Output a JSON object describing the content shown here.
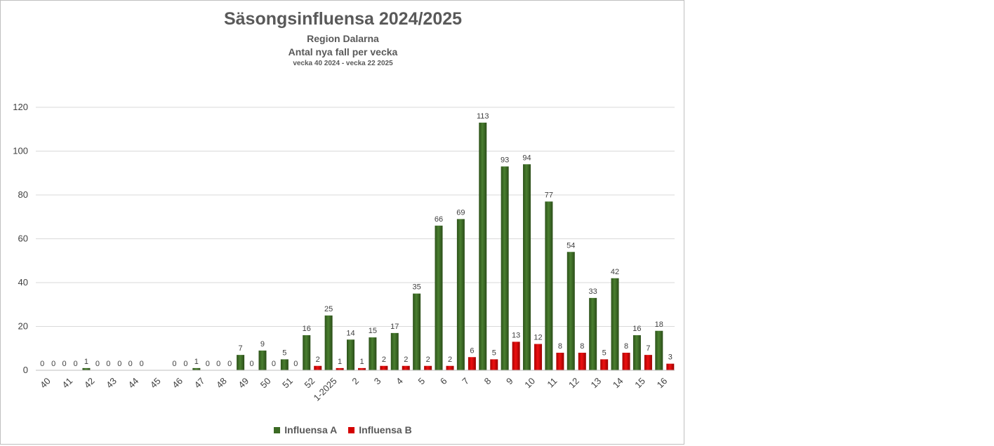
{
  "chart_data": {
    "type": "bar",
    "title": "Säsongsinfluensa 2024/2025",
    "subtitle_lines": [
      "Region Dalarna",
      "Antal nya fall per vecka",
      "vecka 40 2024 - vecka 22 2025"
    ],
    "categories": [
      "40",
      "41",
      "42",
      "43",
      "44",
      "45",
      "46",
      "47",
      "48",
      "49",
      "50",
      "51",
      "52",
      "1-2025",
      "2",
      "3",
      "4",
      "5",
      "6",
      "7",
      "8",
      "9",
      "10",
      "11",
      "12",
      "13",
      "14",
      "15",
      "16"
    ],
    "series": [
      {
        "name": "Influensa A",
        "color": "#3b6a24",
        "values": [
          0,
          0,
          1,
          0,
          0,
          null,
          0,
          1,
          0,
          7,
          9,
          5,
          16,
          25,
          14,
          15,
          17,
          35,
          66,
          69,
          113,
          93,
          94,
          77,
          54,
          33,
          42,
          16,
          18
        ],
        "labels": [
          "0",
          "0",
          "1",
          "0",
          "0",
          "",
          "0",
          "1",
          "0",
          "7",
          "9",
          "5",
          "16",
          "25",
          "14",
          "15",
          "17",
          "35",
          "66",
          "69",
          "113",
          "93",
          "94",
          "77",
          "54",
          "33",
          "42",
          "16",
          "18"
        ]
      },
      {
        "name": "Influensa B",
        "color": "#d40000",
        "values": [
          0,
          0,
          0,
          0,
          0,
          null,
          0,
          0,
          0,
          0,
          0,
          0,
          2,
          1,
          1,
          2,
          2,
          2,
          2,
          6,
          5,
          13,
          12,
          8,
          8,
          5,
          8,
          7,
          3
        ],
        "labels": [
          "0",
          "0",
          "0",
          "0",
          "0",
          "",
          "0",
          "0",
          "0",
          "0",
          "0",
          "0",
          "2",
          "1",
          "1",
          "2",
          "2",
          "2",
          "2",
          "6",
          "5",
          "13",
          "12",
          "8",
          "8",
          "5",
          "8",
          "7",
          "3"
        ]
      }
    ],
    "ylim": [
      0,
      120
    ],
    "yticks": [
      "0",
      "20",
      "40",
      "60",
      "80",
      "100",
      "120"
    ],
    "grid": true,
    "legend_position": "bottom"
  }
}
